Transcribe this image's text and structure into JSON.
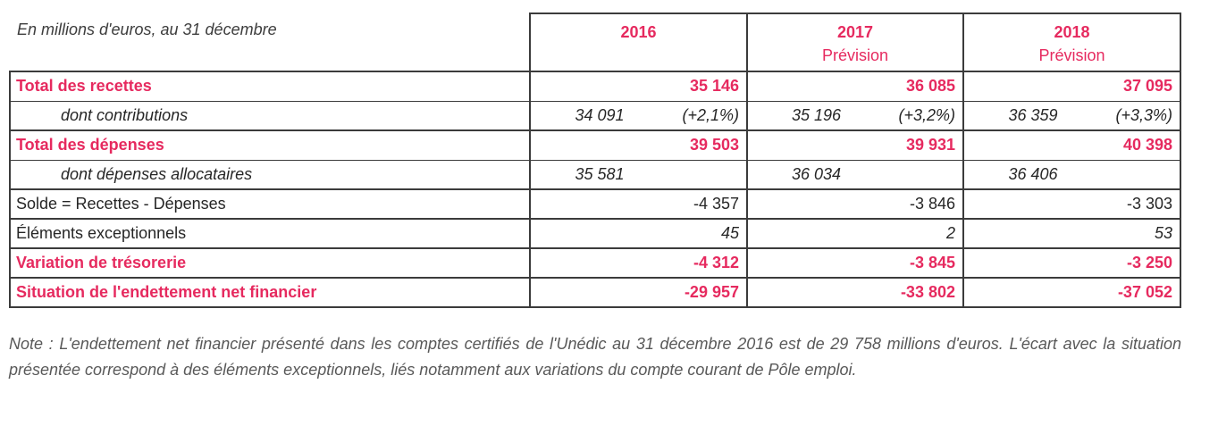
{
  "colors": {
    "accent": "#e62a5f",
    "border": "#3b3b3b",
    "text": "#262626",
    "note": "#595959"
  },
  "table": {
    "corner_label": "En millions d'euros, au 31 décembre",
    "columns": [
      {
        "year": "2016",
        "subtitle": ""
      },
      {
        "year": "2017",
        "subtitle": "Prévision"
      },
      {
        "year": "2018",
        "subtitle": "Prévision"
      }
    ],
    "rows": [
      {
        "label": "Total des recettes",
        "type": "accent",
        "values": [
          "35 146",
          "36 085",
          "37 095"
        ]
      },
      {
        "label": "dont contributions",
        "type": "sub",
        "pairs": [
          [
            "34 091",
            "(+2,1%)"
          ],
          [
            "35 196",
            "(+3,2%)"
          ],
          [
            "36 359",
            "(+3,3%)"
          ]
        ]
      },
      {
        "label": "Total des dépenses",
        "type": "accent",
        "values": [
          "39 503",
          "39 931",
          "40 398"
        ]
      },
      {
        "label": "dont dépenses allocataires",
        "type": "sub",
        "pairs": [
          [
            "35 581",
            ""
          ],
          [
            "36 034",
            ""
          ],
          [
            "36 406",
            ""
          ]
        ]
      },
      {
        "label": "Solde = Recettes - Dépenses",
        "type": "plain",
        "values": [
          "-4 357",
          "-3 846",
          "-3 303"
        ]
      },
      {
        "label": "Éléments exceptionnels",
        "type": "plain-italic",
        "values": [
          "45",
          "2",
          "53"
        ]
      },
      {
        "label": "Variation de trésorerie",
        "type": "accent",
        "values": [
          "-4 312",
          "-3 845",
          "-3 250"
        ]
      },
      {
        "label": "Situation de l'endettement net financier",
        "type": "accent",
        "values": [
          "-29 957",
          "-33 802",
          "-37 052"
        ]
      }
    ]
  },
  "note": "Note : L'endettement net financier présenté dans les comptes certifiés de l'Unédic au 31 décembre 2016 est de 29 758 millions d'euros. L'écart avec la situation présentée correspond à des éléments exceptionnels, liés notamment aux variations du compte courant de Pôle emploi."
}
